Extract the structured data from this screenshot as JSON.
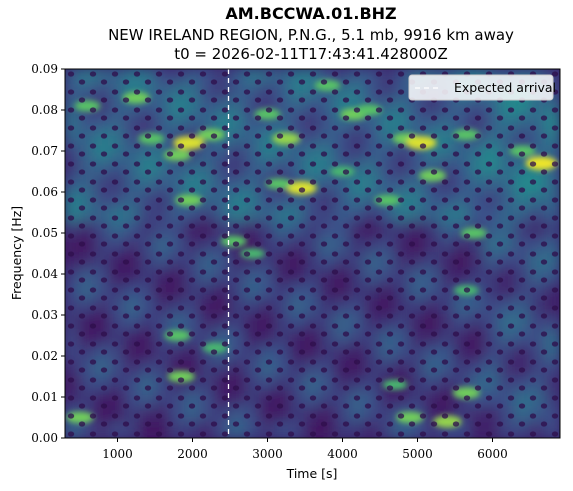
{
  "chart_data": {
    "type": "heatmap",
    "title": "AM.BCCWA.01.BHZ",
    "subtitle": "NEW IRELAND REGION, P.N.G., 5.1 mb, 9916 km away",
    "t0_line": "t0 = 2026-02-11T17:43:41.428000Z",
    "xlabel": "Time [s]",
    "ylabel": "Frequency [Hz]",
    "xlim": [
      300,
      6900
    ],
    "ylim": [
      0.0,
      0.09
    ],
    "x_ticks": [
      1000,
      2000,
      3000,
      4000,
      5000,
      6000
    ],
    "x_tick_labels": [
      "1000",
      "2000",
      "3000",
      "4000",
      "5000",
      "6000"
    ],
    "y_ticks": [
      0.0,
      0.01,
      0.02,
      0.03,
      0.04,
      0.05,
      0.06,
      0.07,
      0.08,
      0.09
    ],
    "y_tick_labels": [
      "0.00",
      "0.01",
      "0.02",
      "0.03",
      "0.04",
      "0.05",
      "0.06",
      "0.07",
      "0.08",
      "0.09"
    ],
    "colormap": "viridis",
    "expected_arrival": {
      "time": 2480,
      "label": "Expected arrival",
      "style": "dashed",
      "color": "#ffffff"
    },
    "legend": {
      "entries": [
        "Expected arrival"
      ],
      "placement": "top-right"
    },
    "grid": false,
    "hotspots": [
      {
        "time": 1950,
        "freq": 0.072,
        "power": 0.9
      },
      {
        "time": 1800,
        "freq": 0.069,
        "power": 0.6
      },
      {
        "time": 1950,
        "freq": 0.058,
        "power": 0.6
      },
      {
        "time": 1250,
        "freq": 0.083,
        "power": 0.6
      },
      {
        "time": 1450,
        "freq": 0.073,
        "power": 0.5
      },
      {
        "time": 2250,
        "freq": 0.074,
        "power": 0.6
      },
      {
        "time": 2550,
        "freq": 0.048,
        "power": 0.5
      },
      {
        "time": 3250,
        "freq": 0.073,
        "power": 0.7
      },
      {
        "time": 3450,
        "freq": 0.061,
        "power": 0.9
      },
      {
        "time": 3150,
        "freq": 0.062,
        "power": 0.5
      },
      {
        "time": 3800,
        "freq": 0.086,
        "power": 0.5
      },
      {
        "time": 4150,
        "freq": 0.079,
        "power": 0.6
      },
      {
        "time": 4850,
        "freq": 0.073,
        "power": 0.6
      },
      {
        "time": 5050,
        "freq": 0.072,
        "power": 0.9
      },
      {
        "time": 5200,
        "freq": 0.064,
        "power": 0.6
      },
      {
        "time": 6650,
        "freq": 0.067,
        "power": 0.95
      },
      {
        "time": 6400,
        "freq": 0.07,
        "power": 0.5
      },
      {
        "time": 5650,
        "freq": 0.074,
        "power": 0.5
      },
      {
        "time": 5750,
        "freq": 0.05,
        "power": 0.5
      },
      {
        "time": 5650,
        "freq": 0.036,
        "power": 0.4
      },
      {
        "time": 5650,
        "freq": 0.011,
        "power": 0.6
      },
      {
        "time": 5400,
        "freq": 0.004,
        "power": 0.7
      },
      {
        "time": 4900,
        "freq": 0.005,
        "power": 0.6
      },
      {
        "time": 4700,
        "freq": 0.013,
        "power": 0.4
      },
      {
        "time": 500,
        "freq": 0.005,
        "power": 0.6
      },
      {
        "time": 1850,
        "freq": 0.015,
        "power": 0.6
      },
      {
        "time": 1800,
        "freq": 0.025,
        "power": 0.5
      },
      {
        "time": 2300,
        "freq": 0.022,
        "power": 0.4
      },
      {
        "time": 2800,
        "freq": 0.045,
        "power": 0.4
      },
      {
        "time": 4600,
        "freq": 0.058,
        "power": 0.5
      },
      {
        "time": 4350,
        "freq": 0.08,
        "power": 0.5
      },
      {
        "time": 3000,
        "freq": 0.079,
        "power": 0.5
      },
      {
        "time": 600,
        "freq": 0.081,
        "power": 0.5
      },
      {
        "time": 4000,
        "freq": 0.065,
        "power": 0.4
      }
    ]
  }
}
